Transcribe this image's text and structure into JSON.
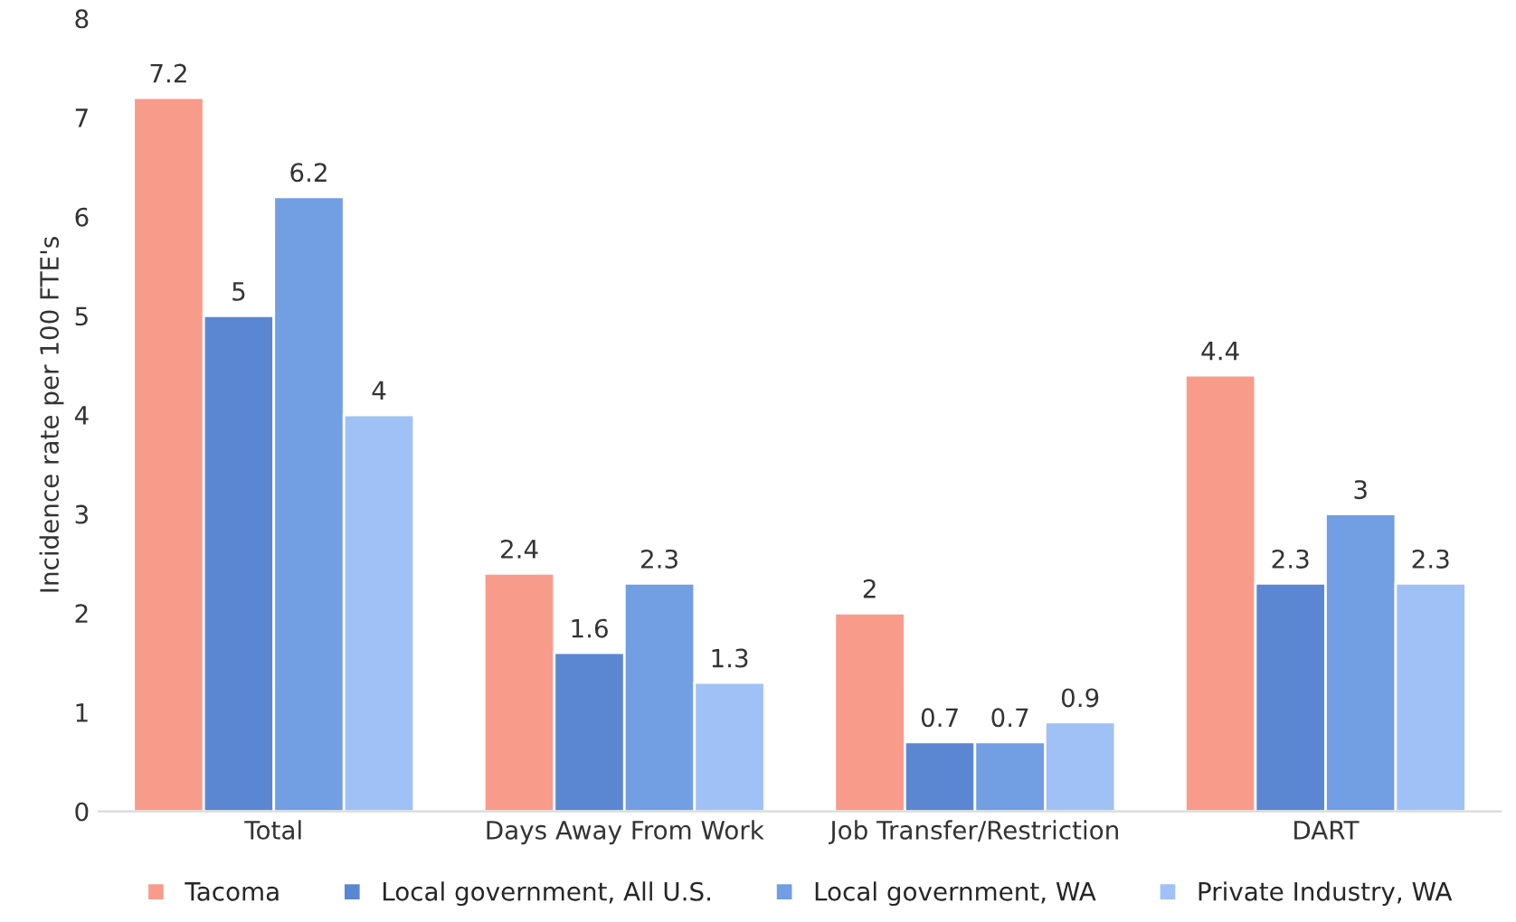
{
  "chart_data": {
    "type": "bar",
    "ylabel": "Incidence rate per 100 FTE's",
    "categories": [
      "Total",
      "Days Away From Work",
      "Job Transfer/Restriction",
      "DART"
    ],
    "series": [
      {
        "name": "Tacoma",
        "color": "#f99b8b",
        "values": [
          7.2,
          2.4,
          2.0,
          4.4
        ]
      },
      {
        "name": "Local government, All U.S.",
        "color": "#5b87d2",
        "values": [
          5,
          1.6,
          0.7,
          2.3
        ]
      },
      {
        "name": "Local government, WA",
        "color": "#729ee3",
        "values": [
          6.2,
          2.3,
          0.7,
          3
        ]
      },
      {
        "name": "Private Industry, WA",
        "color": "#9fc1f5",
        "values": [
          4,
          1.3,
          0.9,
          2.3
        ]
      }
    ],
    "ylim": [
      0,
      8
    ],
    "yticks": [
      0,
      1,
      2,
      3,
      4,
      5,
      6,
      7,
      8
    ],
    "grid": false,
    "legend": "bottom",
    "data_labels": true
  }
}
